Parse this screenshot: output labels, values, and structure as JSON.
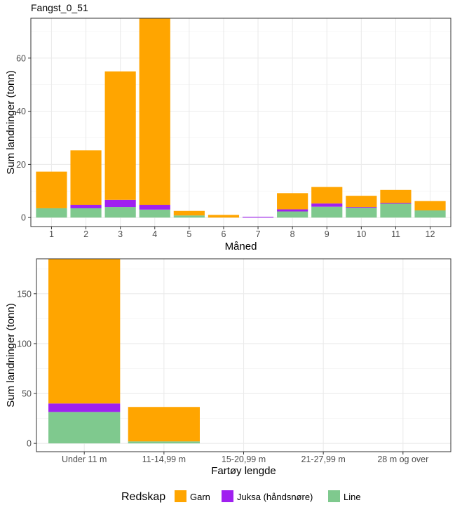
{
  "title": "Fangst_0_51",
  "legend": {
    "title": "Redskap",
    "placement": "bottom"
  },
  "colors": {
    "Garn": "#FFA500",
    "Juksa (håndsnøre)": "#A020F0",
    "Line": "#7FC98E"
  },
  "chart_data": [
    {
      "type": "bar",
      "stacked": true,
      "xlabel": "Måned",
      "ylabel": "Sum landninger (tonn)",
      "categories": [
        "1",
        "2",
        "3",
        "4",
        "5",
        "6",
        "7",
        "8",
        "9",
        "10",
        "11",
        "12"
      ],
      "ylim": [
        0,
        75
      ],
      "yticks": [
        0,
        20,
        40,
        60
      ],
      "grid": true,
      "series": [
        {
          "name": "Line",
          "values": [
            3.5,
            3.5,
            4,
            3,
            0.8,
            0,
            0,
            2.3,
            4.1,
            3.7,
            5.2,
            2.7
          ]
        },
        {
          "name": "Juksa (håndsnøre)",
          "values": [
            0,
            1.3,
            2.7,
            1.8,
            0,
            0,
            0.3,
            0.8,
            1.2,
            0.3,
            0.3,
            0
          ]
        },
        {
          "name": "Garn",
          "values": [
            13.8,
            20.5,
            48.3,
            70.2,
            1.7,
            1,
            0,
            6.1,
            6.2,
            4.2,
            4.9,
            3.5
          ]
        }
      ]
    },
    {
      "type": "bar",
      "stacked": true,
      "xlabel": "Fartøy lengde",
      "ylabel": "Sum landninger (tonn)",
      "categories": [
        "Under 11 m",
        "11-14,99 m",
        "15-20,99 m",
        "21-27,99 m",
        "28 m og over"
      ],
      "ylim": [
        0,
        185
      ],
      "yticks": [
        0,
        50,
        100,
        150
      ],
      "grid": true,
      "series": [
        {
          "name": "Line",
          "values": [
            31.5,
            2,
            0,
            0,
            0
          ]
        },
        {
          "name": "Juksa (håndsnøre)",
          "values": [
            8.5,
            0,
            0,
            0,
            0
          ]
        },
        {
          "name": "Garn",
          "values": [
            145,
            34.5,
            0,
            0,
            0
          ]
        }
      ]
    }
  ]
}
